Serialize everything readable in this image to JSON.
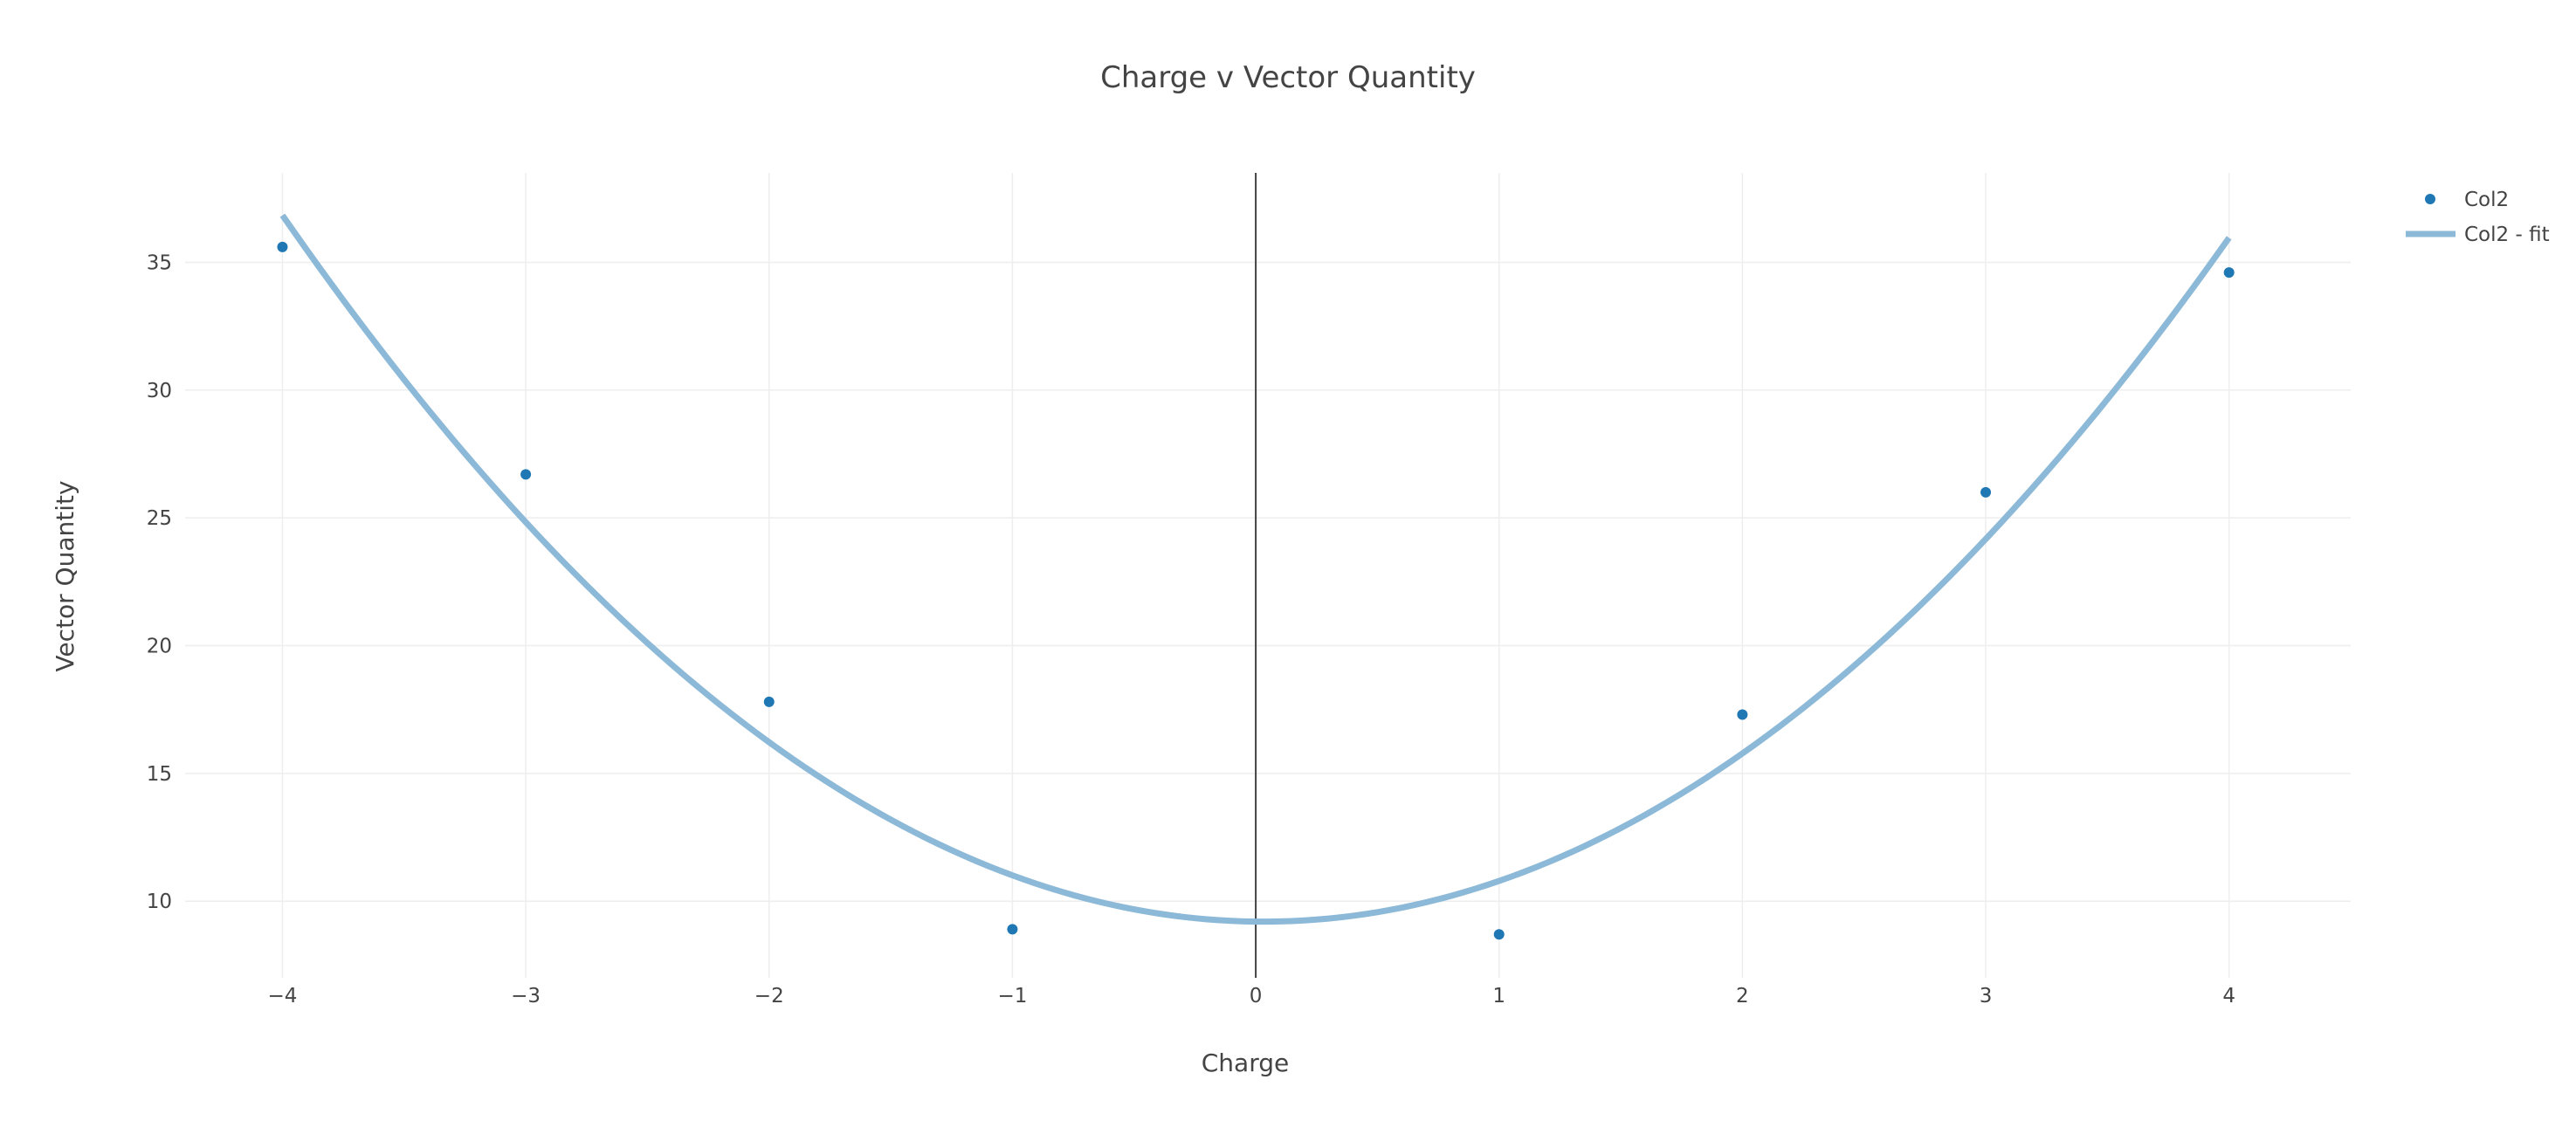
{
  "chart_data": {
    "type": "scatter",
    "title": "Charge v Vector Quantity",
    "xlabel": "Charge",
    "ylabel": "Vector Quantity",
    "xlim": [
      -4.4,
      4.5
    ],
    "ylim": [
      7,
      38.5
    ],
    "x_ticks": [
      -4,
      -3,
      -2,
      -1,
      0,
      1,
      2,
      3,
      4
    ],
    "x_tick_labels": [
      "−4",
      "−3",
      "−2",
      "−1",
      "0",
      "1",
      "2",
      "3",
      "4"
    ],
    "y_ticks": [
      10,
      15,
      20,
      25,
      30,
      35
    ],
    "y_tick_labels": [
      "10",
      "15",
      "20",
      "25",
      "30",
      "35"
    ],
    "grid": true,
    "legend_position": "top-right",
    "series": [
      {
        "name": "Col2",
        "mode": "markers",
        "color": "#1f77b4",
        "x": [
          -4,
          -3,
          -2,
          -1,
          1,
          2,
          3,
          4
        ],
        "y": [
          35.6,
          26.7,
          17.8,
          8.9,
          8.7,
          17.3,
          26.0,
          34.6
        ]
      },
      {
        "name": "Col2 - fit",
        "mode": "line",
        "color": "#8db9d8",
        "fit": {
          "model": "quadratic",
          "a": 1.7,
          "b": -0.11,
          "c": 9.2,
          "x_range": [
            -4,
            4
          ]
        }
      }
    ]
  }
}
